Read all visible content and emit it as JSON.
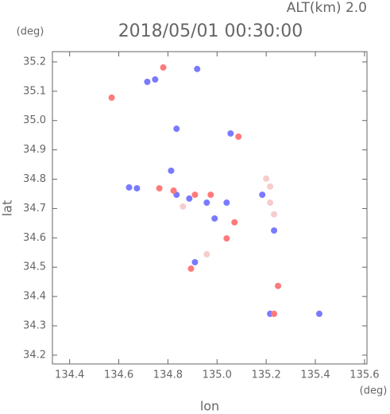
{
  "chart_data": {
    "type": "scatter",
    "title": "2018/05/01 00:30:00",
    "subtitle": "ALT(km) 2.0",
    "y_label": "lat",
    "y_unit": "(deg)",
    "x_label": "lon",
    "x_unit": "(deg)",
    "xlim": [
      134.33,
      135.61
    ],
    "ylim": [
      34.17,
      35.235
    ],
    "xticks": [
      134.4,
      134.6,
      134.8,
      {
        "value": 135,
        "label": "135.0"
      },
      135.2,
      135.4,
      135.6
    ],
    "yticks": [
      34.2,
      34.3,
      34.4,
      34.5,
      34.6,
      34.7,
      34.8,
      34.9,
      {
        "value": 35,
        "label": "35.0"
      },
      35.1,
      35.2
    ],
    "series": [
      {
        "color": "#7a7aff",
        "x": [
          134.716,
          134.748,
          134.919,
          134.835,
          134.642,
          134.674,
          134.813,
          134.835,
          134.887,
          134.958,
          135.039,
          134.99,
          135.184,
          135.232,
          135.216,
          135.416,
          134.91,
          135.055
        ],
        "y": [
          35.132,
          35.14,
          35.176,
          34.972,
          34.772,
          34.769,
          34.829,
          34.747,
          34.734,
          34.72,
          34.72,
          34.666,
          34.747,
          34.625,
          34.341,
          34.341,
          34.517,
          34.956
        ]
      },
      {
        "color": "#ff7a7a",
        "x": [
          134.571,
          134.781,
          134.765,
          134.823,
          134.91,
          134.974,
          135.039,
          135.071,
          135.248,
          135.232,
          134.894,
          135.087
        ],
        "y": [
          35.078,
          35.181,
          34.769,
          34.761,
          34.747,
          34.747,
          34.598,
          34.653,
          34.436,
          34.341,
          34.495,
          34.945
        ]
      },
      {
        "color": "#f8cccc",
        "x": [
          135.216,
          135.216,
          135.2,
          135.232,
          134.958,
          134.861
        ],
        "y": [
          34.775,
          34.72,
          34.802,
          34.68,
          34.544,
          34.707
        ]
      }
    ]
  }
}
